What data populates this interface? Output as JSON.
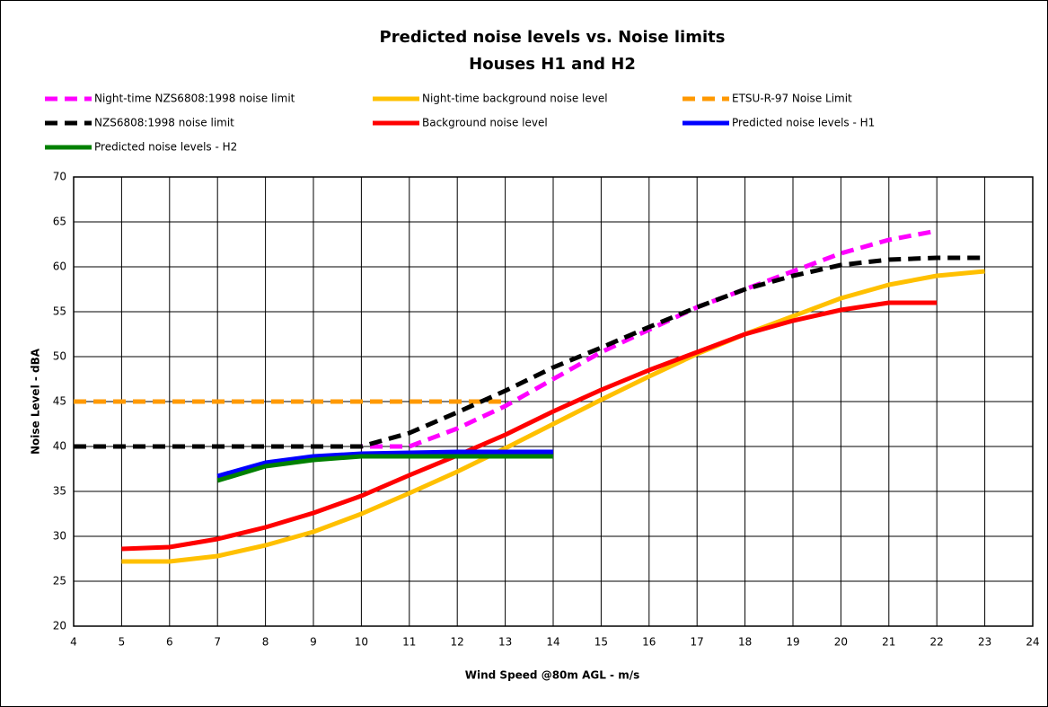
{
  "chart_data": {
    "type": "line",
    "title": "Predicted noise levels vs. Noise limits",
    "subtitle": "Houses H1 and H2",
    "x_label": "Wind Speed @80m AGL - m/s",
    "y_label": "Noise Level - dBA",
    "x": [
      4,
      5,
      6,
      7,
      8,
      9,
      10,
      11,
      12,
      13,
      14,
      15,
      16,
      17,
      18,
      19,
      20,
      21,
      22,
      23
    ],
    "xlim": [
      4,
      24
    ],
    "xticks": [
      4,
      5,
      6,
      7,
      8,
      9,
      10,
      11,
      12,
      13,
      14,
      15,
      16,
      17,
      18,
      19,
      20,
      21,
      22,
      23,
      24
    ],
    "ylim": [
      20,
      70
    ],
    "yticks": [
      20,
      25,
      30,
      35,
      40,
      45,
      50,
      55,
      60,
      65,
      70
    ],
    "grid": true,
    "series": [
      {
        "name": "Night-time NZS6808:1998 noise limit",
        "color": "#ff00ff",
        "dash": true,
        "values": [
          40,
          40,
          40,
          40,
          40,
          40,
          40,
          40,
          42,
          44.5,
          47.5,
          50.5,
          53,
          55.5,
          57.5,
          59.5,
          61.5,
          63,
          64,
          null
        ]
      },
      {
        "name": "Night-time background noise level",
        "color": "#ffc000",
        "dash": false,
        "values": [
          null,
          27.2,
          27.2,
          27.8,
          29,
          30.5,
          32.5,
          34.8,
          37.2,
          39.8,
          42.5,
          45.2,
          47.8,
          50.3,
          52.5,
          54.5,
          56.5,
          58,
          59,
          59.5
        ]
      },
      {
        "name": "ETSU-R-97 Noise Limit",
        "color": "#ff9900",
        "dash": true,
        "values": [
          45,
          45,
          45,
          45,
          45,
          45,
          45,
          45,
          45,
          45,
          null,
          null,
          null,
          null,
          null,
          null,
          null,
          null,
          null,
          null
        ]
      },
      {
        "name": "NZS6808:1998 noise limit",
        "color": "#000000",
        "dash": true,
        "values": [
          40,
          40,
          40,
          40,
          40,
          40,
          40,
          41.5,
          43.8,
          46.2,
          48.8,
          51,
          53.3,
          55.5,
          57.5,
          59,
          60.2,
          60.8,
          61,
          61
        ]
      },
      {
        "name": "Background noise level",
        "color": "#ff0000",
        "dash": false,
        "values": [
          null,
          28.6,
          28.8,
          29.7,
          31,
          32.6,
          34.5,
          36.8,
          39,
          41.3,
          43.9,
          46.3,
          48.5,
          50.5,
          52.5,
          54,
          55.2,
          56,
          56,
          null
        ]
      },
      {
        "name": "Predicted noise levels - H1",
        "color": "#0000ff",
        "dash": false,
        "values": [
          null,
          null,
          null,
          36.7,
          38.2,
          38.9,
          39.2,
          39.3,
          39.4,
          39.4,
          39.4,
          null,
          null,
          null,
          null,
          null,
          null,
          null,
          null,
          null
        ]
      },
      {
        "name": "Predicted noise levels - H2",
        "color": "#008000",
        "dash": false,
        "values": [
          null,
          null,
          null,
          36.2,
          37.8,
          38.5,
          38.9,
          38.9,
          38.9,
          38.9,
          38.9,
          null,
          null,
          null,
          null,
          null,
          null,
          null,
          null,
          null
        ]
      }
    ]
  }
}
